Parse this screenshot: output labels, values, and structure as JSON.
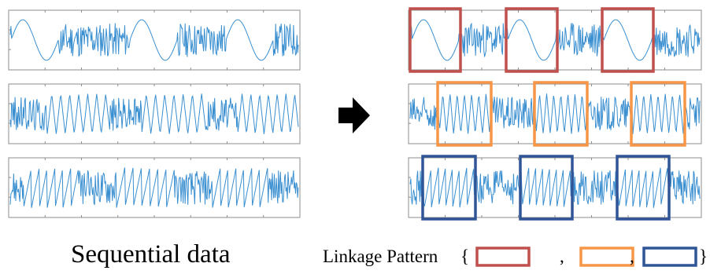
{
  "caption": "Sequential data",
  "legend": {
    "label": "Linkage Pattern",
    "open": "{",
    "sep": ",",
    "close": "}"
  },
  "colors": {
    "signal": "#3a8fd0",
    "axis": "#8c8c8c",
    "pattern_red": "#c0504d",
    "pattern_orange": "#f79646",
    "pattern_blue": "#2f5597",
    "arrow": "#000000"
  },
  "rows": [
    {
      "pattern": "sine",
      "pattern_color": "pattern_red"
    },
    {
      "pattern": "triangle",
      "pattern_color": "pattern_orange"
    },
    {
      "pattern": "sawtooth",
      "pattern_color": "pattern_blue"
    }
  ]
}
